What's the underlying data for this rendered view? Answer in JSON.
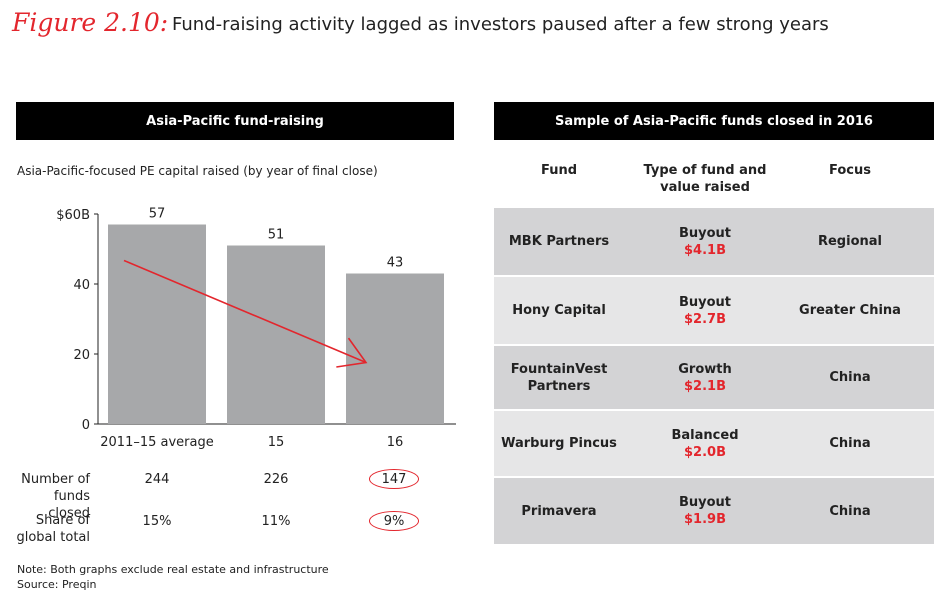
{
  "figure": {
    "label": "Figure 2.10:",
    "title": "Fund-raising activity lagged as investors paused after a few strong years"
  },
  "left_panel": {
    "header": "Asia-Pacific fund-raising",
    "subtitle": "Asia-Pacific-focused PE capital raised (by year of final close)"
  },
  "chart_data": {
    "type": "bar",
    "categories": [
      "2011–15 average",
      "15",
      "16"
    ],
    "values": [
      57,
      51,
      43
    ],
    "data_labels": [
      "57",
      "51",
      "43"
    ],
    "ylim": [
      0,
      60
    ],
    "yticks": [
      0,
      20,
      40,
      60
    ],
    "ytick_labels": [
      "0",
      "20",
      "40",
      "$60B"
    ],
    "grid": false,
    "annotation": "red downward trend arrow from first bar to last bar",
    "colors": {
      "bar": "#a7a8aa",
      "arrow": "#e3262d"
    }
  },
  "stats": {
    "rows": [
      {
        "label": [
          "Number of",
          "funds closed"
        ],
        "values": [
          "244",
          "226",
          "147"
        ],
        "circled": [
          false,
          false,
          true
        ]
      },
      {
        "label": [
          "Share of",
          "global total"
        ],
        "values": [
          "15%",
          "11%",
          "9%"
        ],
        "circled": [
          false,
          false,
          true
        ]
      }
    ]
  },
  "notes": {
    "note": "Note: Both graphs exclude real estate and infrastructure",
    "source": "Source: Preqin"
  },
  "right_panel": {
    "header": "Sample of Asia-Pacific funds closed in 2016",
    "columns": [
      "Fund",
      "Type of fund and value raised",
      "Focus"
    ],
    "rows": [
      {
        "fund": "MBK Partners",
        "type": "Buyout",
        "value": "$4.1B",
        "focus": "Regional"
      },
      {
        "fund": "Hony Capital",
        "type": "Buyout",
        "value": "$2.7B",
        "focus": "Greater China"
      },
      {
        "fund": "FountainVest Partners",
        "type": "Growth",
        "value": "$2.1B",
        "focus": "China"
      },
      {
        "fund": "Warburg Pincus",
        "type": "Balanced",
        "value": "$2.0B",
        "focus": "China"
      },
      {
        "fund": "Primavera",
        "type": "Buyout",
        "value": "$1.9B",
        "focus": "China"
      }
    ],
    "colors": {
      "row_dark": "#d3d3d5",
      "row_light": "#e6e6e7",
      "value": "#e3262d"
    }
  }
}
